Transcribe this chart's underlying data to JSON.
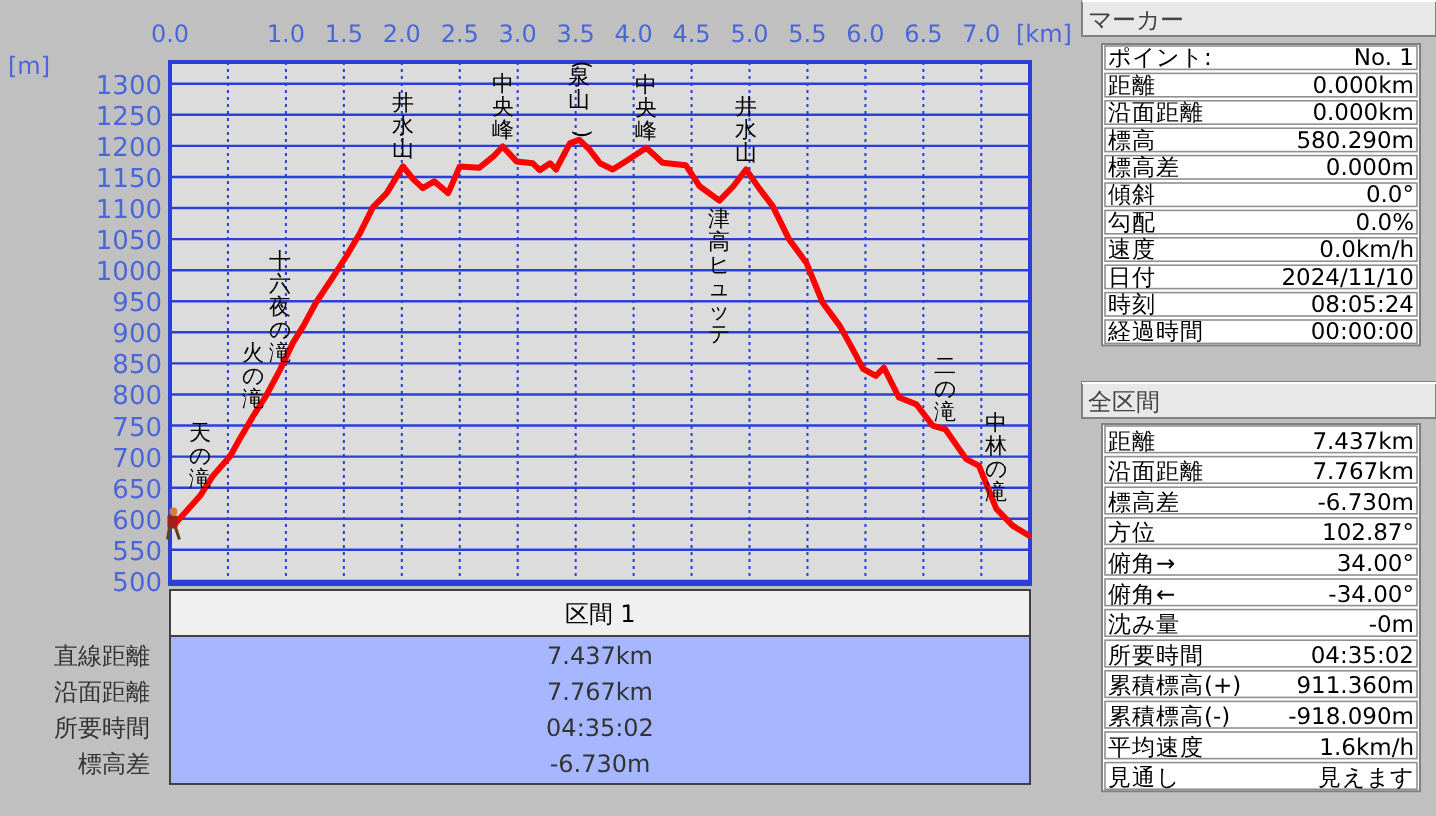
{
  "chart_data": [
    {
      "type": "line",
      "xlabel": "[km]",
      "ylabel": "[m]",
      "xlim": [
        0,
        7.42
      ],
      "ylim": [
        495,
        1335
      ],
      "xticks": [
        {
          "value": 0,
          "label": "0.0"
        },
        {
          "value": 0.5,
          "label": null
        },
        {
          "value": 1,
          "label": "1.0"
        },
        {
          "value": 1.5,
          "label": "1.5"
        },
        {
          "value": 2,
          "label": "2.0"
        },
        {
          "value": 2.5,
          "label": "2.5"
        },
        {
          "value": 3,
          "label": "3.0"
        },
        {
          "value": 3.5,
          "label": "3.5"
        },
        {
          "value": 4,
          "label": "4.0"
        },
        {
          "value": 4.5,
          "label": "4.5"
        },
        {
          "value": 5,
          "label": "5.0"
        },
        {
          "value": 5.5,
          "label": "5.5"
        },
        {
          "value": 6,
          "label": "6.0"
        },
        {
          "value": 6.5,
          "label": "6.5"
        },
        {
          "value": 7,
          "label": "7.0"
        }
      ],
      "yticks": [
        500,
        550,
        600,
        650,
        700,
        750,
        800,
        850,
        900,
        950,
        1000,
        1050,
        1100,
        1150,
        1200,
        1250,
        1300
      ],
      "grid": true,
      "marker": "none",
      "line_style": "solid",
      "series": [
        {
          "color": "#ff0000",
          "x": [
            0.03,
            0.26,
            0.37,
            0.52,
            0.6,
            0.72,
            0.83,
            0.95,
            1.06,
            1.15,
            1.26,
            1.41,
            1.52,
            1.64,
            1.75,
            1.87,
            2.01,
            2.1,
            2.18,
            2.28,
            2.4,
            2.5,
            2.67,
            2.79,
            2.87,
            2.99,
            3.13,
            3.19,
            3.28,
            3.33,
            3.45,
            3.53,
            3.62,
            3.71,
            3.82,
            3.94,
            4.11,
            4.25,
            4.45,
            4.57,
            4.74,
            4.86,
            4.97,
            5.09,
            5.2,
            5.34,
            5.49,
            5.63,
            5.78,
            5.89,
            5.98,
            6.09,
            6.16,
            6.29,
            6.44,
            6.58,
            6.69,
            6.87,
            6.98,
            7.13,
            7.27,
            7.41
          ],
          "values": [
            589,
            637,
            669,
            701,
            728,
            766,
            798,
            840,
            883,
            910,
            948,
            990,
            1022,
            1060,
            1101,
            1124,
            1167,
            1146,
            1132,
            1143,
            1124,
            1167,
            1165,
            1183,
            1199,
            1175,
            1172,
            1161,
            1172,
            1162,
            1204,
            1210,
            1194,
            1172,
            1162,
            1176,
            1197,
            1173,
            1169,
            1135,
            1112,
            1135,
            1162,
            1130,
            1103,
            1050,
            1012,
            948,
            910,
            873,
            841,
            830,
            843,
            795,
            784,
            750,
            744,
            696,
            685,
            616,
            589,
            573
          ]
        }
      ],
      "annotations": [
        {
          "text": "天の滝",
          "x": 0.26,
          "y": 637
        },
        {
          "text": "火の滝",
          "x": 0.72,
          "y": 766
        },
        {
          "text": "十六夜の滝",
          "x": 0.95,
          "y": 840
        },
        {
          "text": "井水山",
          "x": 2.01,
          "y": 1167
        },
        {
          "text": "中央峰",
          "x": 2.87,
          "y": 1199
        },
        {
          "text": "(泉山)",
          "x": 3.53,
          "y": 1210
        },
        {
          "text": "中央峰",
          "x": 4.11,
          "y": 1197
        },
        {
          "text": "井水山",
          "x": 4.97,
          "y": 1162
        },
        {
          "text": "津高ヒュッテ",
          "x": 4.74,
          "y": 1112
        },
        {
          "text": "二の滝",
          "x": 6.69,
          "y": 744
        },
        {
          "text": "中林の滝",
          "x": 7.13,
          "y": 616
        }
      ]
    },
    {
      "type": "other",
      "title": "マーカー",
      "annotations": [
        "ポイント:",
        "No. 1",
        "距離",
        "0.000km",
        "沿面距離",
        "0.000km",
        "標高",
        "580.290m",
        "標高差",
        "0.000m",
        "傾斜",
        "0.0°",
        "勾配",
        "0.0%",
        "速度",
        "0.0km/h",
        "日付",
        "2024/11/10",
        "時刻",
        "08:05:24",
        "経過時間",
        "00:00:00"
      ]
    },
    {
      "type": "other",
      "title": "全区間",
      "annotations": [
        "距離",
        "7.437km",
        "沿面距離",
        "7.767km",
        "標高差",
        "-6.730m",
        "方位",
        "102.87°",
        "俯角→",
        "34.00°",
        "俯角←",
        "-34.00°",
        "沈み量",
        "-0m",
        "所要時間",
        "04:35:02",
        "累積標高(+)",
        "911.360m",
        "累積標高(-)",
        "-918.090m",
        "平均速度",
        "1.6km/h",
        "見通し",
        "見えます"
      ]
    },
    {
      "type": "other",
      "title": "区間 1",
      "annotations": [
        "直線距離",
        "7.437km",
        "沿面距離",
        "7.767km",
        "所要時間",
        "04:35:02",
        "標高差",
        "-6.730m"
      ]
    }
  ]
}
